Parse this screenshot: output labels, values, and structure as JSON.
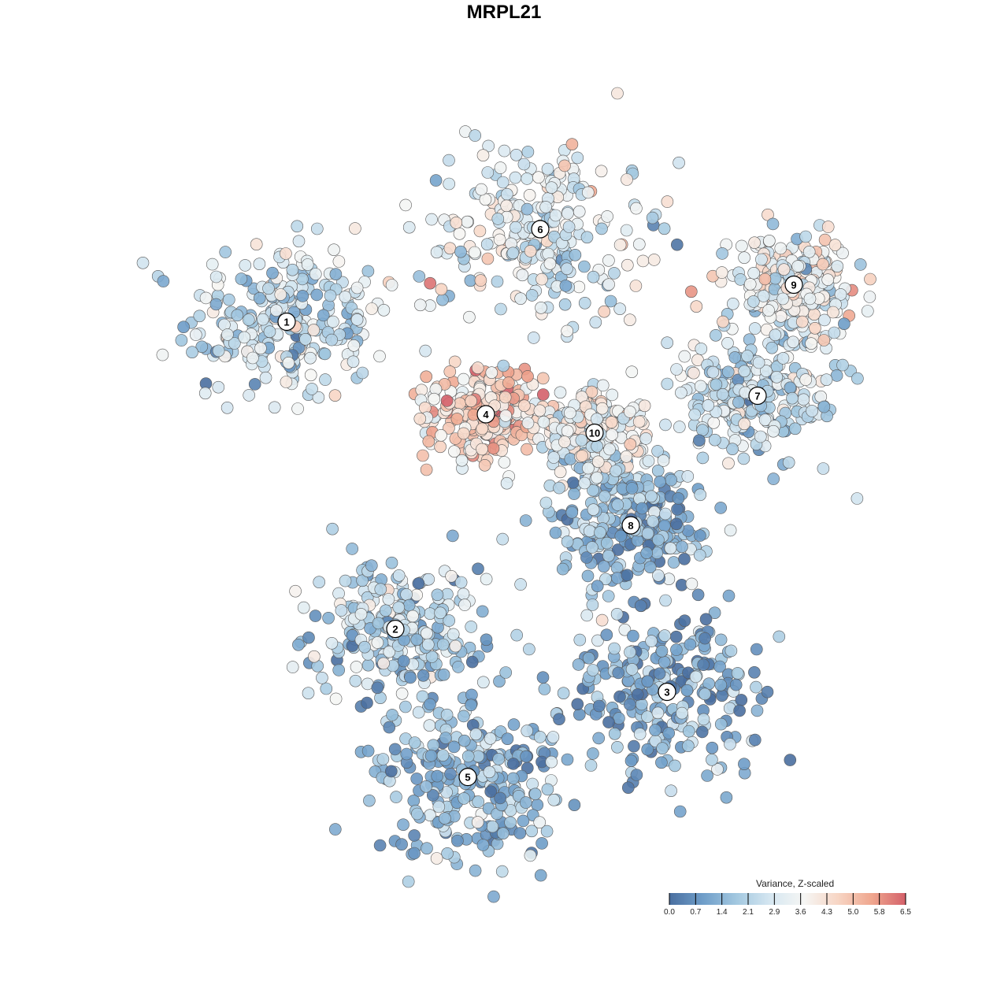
{
  "title": "MRPL21",
  "chart_data": {
    "type": "scatter",
    "title": "MRPL21",
    "xlabel": "",
    "ylabel": "",
    "color_scale": {
      "label": "Variance, Z-scaled",
      "min": 0.0,
      "max": 6.5,
      "ticks": [
        "0.0",
        "0.7",
        "1.4",
        "2.1",
        "2.9",
        "3.6",
        "4.3",
        "5.0",
        "5.8",
        "6.5"
      ],
      "colors": [
        "#4a6fa0",
        "#6f9ec9",
        "#a3c8e0",
        "#d6e7f1",
        "#f6f6f4",
        "#f7d5c4",
        "#efa68e",
        "#d4616a"
      ]
    },
    "cluster_labels": [
      "1",
      "2",
      "3",
      "4",
      "5",
      "6",
      "7",
      "8",
      "9",
      "10"
    ],
    "clusters": [
      {
        "label": "1",
        "x": -0.6,
        "y": 0.45,
        "level": 2.5,
        "spread": 0.12
      },
      {
        "label": "2",
        "x": -0.3,
        "y": -0.38,
        "level": 2.2,
        "spread": 0.1
      },
      {
        "label": "3",
        "x": 0.45,
        "y": -0.55,
        "level": 1.3,
        "spread": 0.13
      },
      {
        "label": "4",
        "x": -0.05,
        "y": 0.2,
        "level": 4.6,
        "spread": 0.07
      },
      {
        "label": "5",
        "x": -0.1,
        "y": -0.78,
        "level": 1.4,
        "spread": 0.12
      },
      {
        "label": "6",
        "x": 0.1,
        "y": 0.7,
        "level": 3.0,
        "spread": 0.14
      },
      {
        "label": "7",
        "x": 0.7,
        "y": 0.25,
        "level": 2.5,
        "spread": 0.1
      },
      {
        "label": "8",
        "x": 0.35,
        "y": -0.1,
        "level": 1.4,
        "spread": 0.09
      },
      {
        "label": "9",
        "x": 0.8,
        "y": 0.55,
        "level": 3.4,
        "spread": 0.07
      },
      {
        "label": "10",
        "x": 0.25,
        "y": 0.15,
        "level": 3.3,
        "spread": 0.06
      }
    ],
    "legend": "bottom-right",
    "grid": false,
    "axes_visible": false
  }
}
